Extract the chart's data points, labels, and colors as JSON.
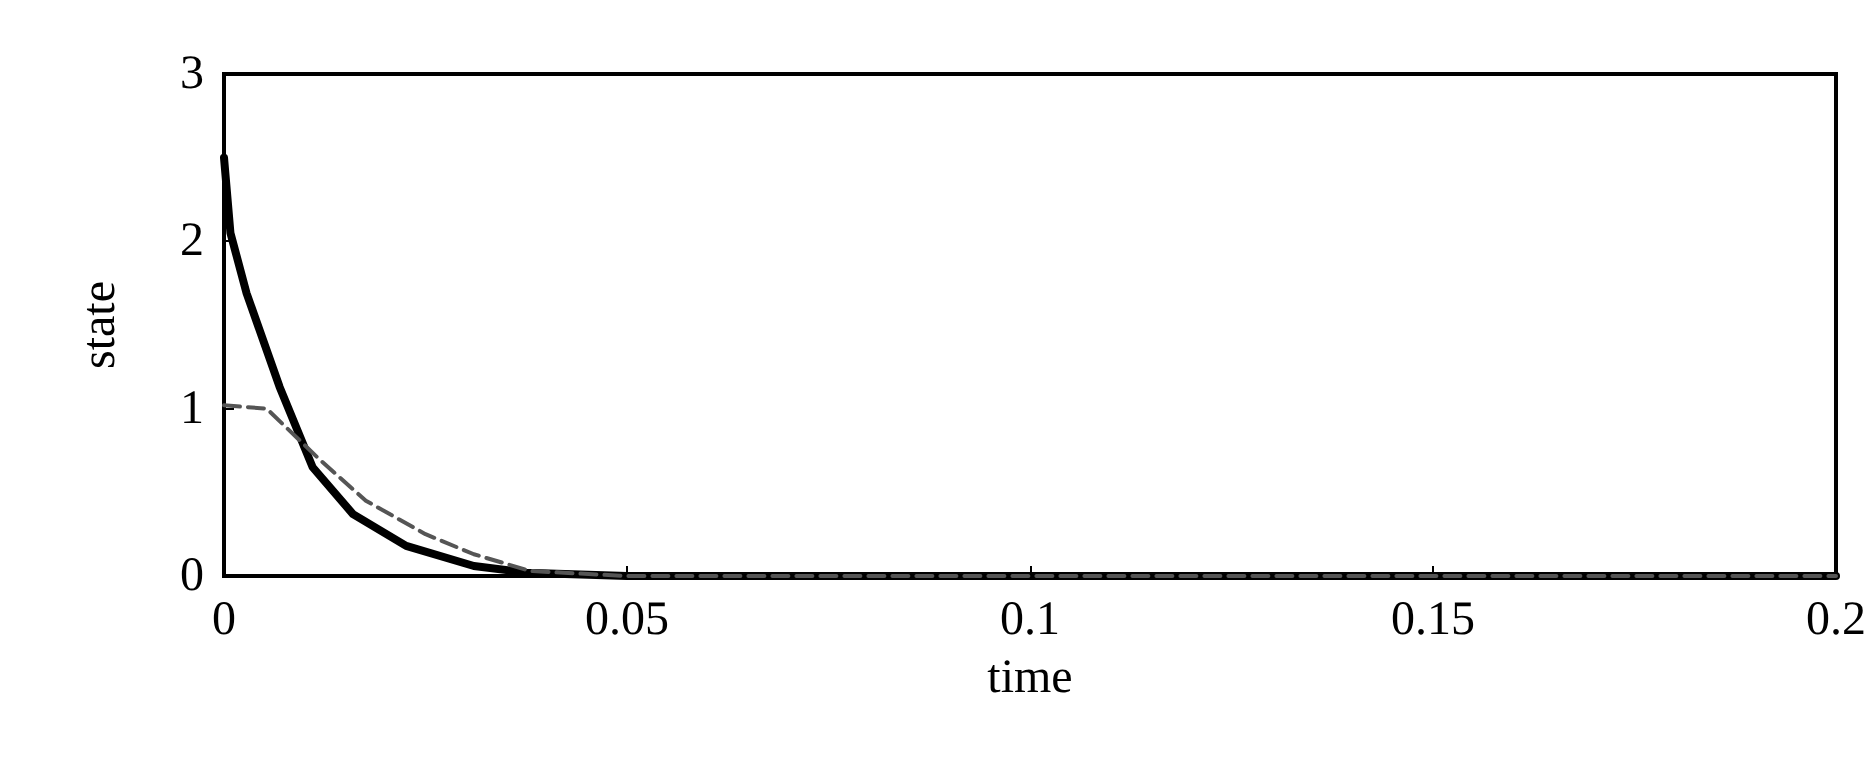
{
  "chart_data": {
    "type": "line",
    "xlabel": "time",
    "ylabel": "state",
    "xlim": [
      0,
      0.2
    ],
    "ylim": [
      0,
      3
    ],
    "xticks": [
      0,
      0.05,
      0.1,
      0.15,
      0.2
    ],
    "yticks": [
      0,
      1,
      2,
      3
    ],
    "grid": false,
    "marker": "none",
    "series": [
      {
        "color": "#000000",
        "line_style": "solid",
        "x": [
          0,
          0.0008,
          0.0028,
          0.0069,
          0.011,
          0.016,
          0.0226,
          0.031,
          0.0375,
          0.05,
          0.1,
          0.15,
          0.2
        ],
        "values": [
          2.5,
          2.05,
          1.69,
          1.13,
          0.65,
          0.37,
          0.18,
          0.06,
          0.02,
          0,
          0,
          0,
          0
        ]
      },
      {
        "color": "#555555",
        "line_style": "dashed",
        "x": [
          0,
          0.0053,
          0.012,
          0.0176,
          0.025,
          0.031,
          0.038,
          0.05,
          0.1,
          0.15,
          0.2
        ],
        "values": [
          1.02,
          1.0,
          0.69,
          0.45,
          0.25,
          0.13,
          0.03,
          0,
          0,
          0,
          0
        ]
      }
    ]
  }
}
